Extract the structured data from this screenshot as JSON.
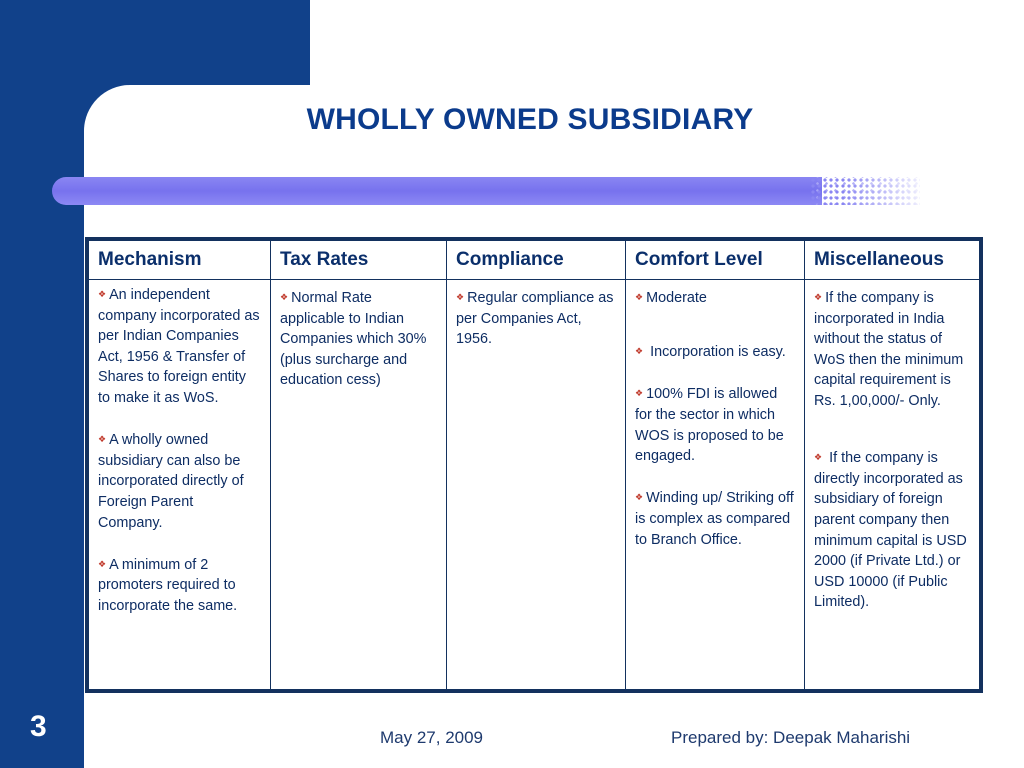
{
  "slide": {
    "title": "WHOLLY OWNED SUBSIDIARY",
    "number": "3",
    "footer_date": "May 27, 2009",
    "footer_author": "Prepared by: Deepak Maharishi"
  },
  "table": {
    "headers": [
      "Mechanism",
      "Tax Rates",
      "Compliance",
      "Comfort Level",
      "Miscellaneous"
    ],
    "columns": [
      [
        "An independent company incorporated as per Indian Companies Act, 1956 & Transfer of Shares to foreign entity to make it as WoS.",
        "A wholly owned subsidiary can also be incorporated directly of Foreign Parent Company.",
        "A minimum of 2 promoters required to incorporate the same."
      ],
      [
        "Normal Rate applicable to Indian Companies which 30% (plus surcharge and education cess)"
      ],
      [
        "Regular compliance as per Companies Act, 1956."
      ],
      [
        "Moderate",
        "Incorporation is easy.",
        "100% FDI is allowed for the sector in which WOS is proposed to be engaged.",
        "Winding up/ Striking off is complex as compared to Branch Office."
      ],
      [
        "If the company is incorporated in India without the status of WoS then the minimum capital requirement is Rs. 1,00,000/- Only.",
        "If the company is directly incorporated as subsidiary of foreign parent company then minimum capital is USD 2000 (if Private Ltd.) or USD 10000 (if Public Limited)."
      ]
    ]
  },
  "colors": {
    "brand_blue": "#11418a",
    "title_color": "#0b3b8c",
    "bar_color": "#7772ee",
    "bullet_color": "#c0392b"
  }
}
